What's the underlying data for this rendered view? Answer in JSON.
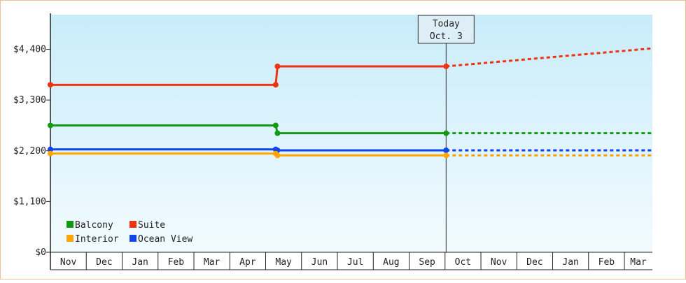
{
  "chart_data": {
    "type": "line",
    "title": "",
    "xlabel": "",
    "ylabel": "",
    "months": [
      "Nov",
      "Dec",
      "Jan",
      "Feb",
      "Mar",
      "Apr",
      "May",
      "Jun",
      "Jul",
      "Aug",
      "Sep",
      "Oct",
      "Nov",
      "Dec",
      "Jan",
      "Feb",
      "Mar"
    ],
    "y_ticks": [
      {
        "value": 0,
        "label": "$0"
      },
      {
        "value": 1100,
        "label": "$1,100"
      },
      {
        "value": 2200,
        "label": "$2,200"
      },
      {
        "value": 3300,
        "label": "$3,300"
      },
      {
        "value": 4400,
        "label": "$4,400"
      }
    ],
    "ylim": [
      0,
      5150
    ],
    "xlim": [
      0,
      16.78
    ],
    "today": {
      "line1": "Today",
      "line2": "Oct. 3",
      "x": 11.03
    },
    "grid": false,
    "legend_position": "bottom-left",
    "series": [
      {
        "name": "Suite",
        "color": "#ee3311",
        "points": [
          [
            0,
            3630
          ],
          [
            6.28,
            3630
          ],
          [
            6.33,
            4030
          ],
          [
            11.03,
            4030
          ]
        ],
        "forecast": [
          [
            11.03,
            4030
          ],
          [
            16.78,
            4420
          ]
        ]
      },
      {
        "name": "Balcony",
        "color": "#119911",
        "points": [
          [
            0,
            2750
          ],
          [
            6.28,
            2750
          ],
          [
            6.33,
            2580
          ],
          [
            11.03,
            2580
          ]
        ],
        "forecast": [
          [
            11.03,
            2580
          ],
          [
            16.78,
            2580
          ]
        ]
      },
      {
        "name": "Ocean View",
        "color": "#1144ee",
        "points": [
          [
            0,
            2230
          ],
          [
            6.28,
            2230
          ],
          [
            6.33,
            2210
          ],
          [
            11.03,
            2210
          ]
        ],
        "forecast": [
          [
            11.03,
            2210
          ],
          [
            16.78,
            2210
          ]
        ]
      },
      {
        "name": "Interior",
        "color": "#ffa500",
        "points": [
          [
            0,
            2140
          ],
          [
            6.28,
            2140
          ],
          [
            6.33,
            2100
          ],
          [
            11.03,
            2100
          ]
        ],
        "forecast": [
          [
            11.03,
            2100
          ],
          [
            16.78,
            2100
          ]
        ]
      }
    ],
    "legend_order": [
      "Balcony",
      "Suite",
      "Interior",
      "Ocean View"
    ]
  }
}
